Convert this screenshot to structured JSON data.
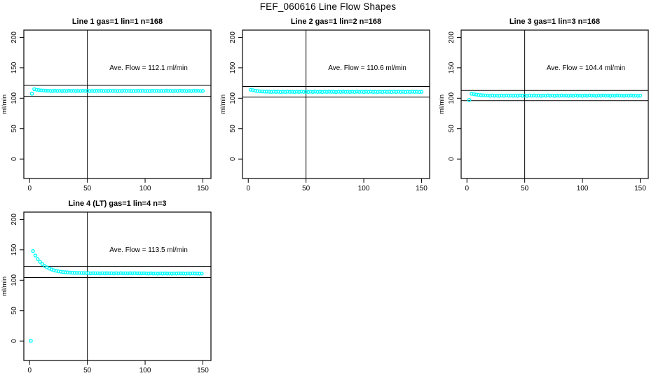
{
  "page_title": "FEF_060616  Line Flow Shapes",
  "colors": {
    "marker": "#00ffff",
    "axis": "#000000",
    "text": "#000000",
    "background": "#ffffff"
  },
  "chart_data": [
    {
      "type": "scatter",
      "title": "Line 1 gas=1 lin=1 n=168",
      "annotation": "Ave. Flow =  112.1  ml/min",
      "ave_flow_ml_min": 112.1,
      "n": 168,
      "ylabel": "ml/min",
      "xlim": [
        -5,
        157
      ],
      "ylim": [
        -32,
        212
      ],
      "xticks": [
        0,
        50,
        100,
        150
      ],
      "yticks": [
        0,
        50,
        100,
        150,
        200
      ],
      "vline_x": 50,
      "ref_lines": {
        "upper": 121.1,
        "lower": 103.1
      },
      "outlier_points": [
        [
          2,
          107.5
        ]
      ],
      "x_start": 4,
      "x_step": 2,
      "y": [
        114.8,
        114.0,
        113.4,
        112.9,
        112.6,
        112.4,
        112.2,
        112.1,
        111.8,
        112.3,
        111.9,
        112.2,
        111.8,
        112.1,
        111.8,
        112.3,
        111.9,
        112.2,
        111.8,
        112.1,
        111.8,
        112.3,
        111.9,
        112.2,
        111.8,
        112.1,
        111.8,
        112.3,
        111.9,
        112.2,
        111.8,
        112.1,
        111.8,
        112.3,
        111.9,
        112.2,
        111.8,
        112.1,
        111.8,
        112.3,
        111.9,
        112.2,
        111.8,
        112.1,
        111.8,
        112.3,
        111.9,
        112.2,
        111.8,
        112.1,
        111.8,
        112.3,
        111.9,
        112.2,
        111.8,
        112.1,
        111.8,
        112.3,
        111.9,
        112.2,
        111.8,
        112.1,
        111.8,
        112.3,
        111.9,
        112.2,
        111.8,
        112.1,
        111.8,
        112.3,
        111.9,
        112.2,
        111.8,
        112.0
      ]
    },
    {
      "type": "scatter",
      "title": "Line 2 gas=1 lin=2 n=168",
      "annotation": "Ave. Flow =  110.6  ml/min",
      "ave_flow_ml_min": 110.6,
      "n": 168,
      "ylabel": "ml/min",
      "xlim": [
        -5,
        157
      ],
      "ylim": [
        -32,
        212
      ],
      "xticks": [
        0,
        50,
        100,
        150
      ],
      "yticks": [
        0,
        50,
        100,
        150,
        200
      ],
      "vline_x": 50,
      "ref_lines": {
        "upper": 119.4,
        "lower": 101.8
      },
      "outlier_points": [],
      "x_start": 2,
      "x_step": 2,
      "y": [
        113.9,
        113.2,
        112.4,
        111.8,
        111.4,
        111.1,
        110.9,
        110.8,
        110.7,
        110.3,
        110.8,
        110.4,
        110.6,
        110.2,
        110.7,
        110.3,
        110.8,
        110.4,
        110.6,
        110.2,
        110.7,
        110.3,
        110.8,
        110.4,
        110.6,
        110.2,
        110.7,
        110.3,
        110.8,
        110.4,
        110.6,
        110.2,
        110.7,
        110.3,
        110.8,
        110.4,
        110.6,
        110.2,
        110.7,
        110.3,
        110.8,
        110.4,
        110.6,
        110.2,
        110.7,
        110.3,
        110.8,
        110.4,
        110.6,
        110.2,
        110.7,
        110.3,
        110.8,
        110.4,
        110.6,
        110.2,
        110.7,
        110.3,
        110.8,
        110.4,
        110.6,
        110.2,
        110.7,
        110.3,
        110.8,
        110.4,
        110.6,
        110.2,
        110.7,
        110.3,
        110.8,
        110.4,
        110.6,
        110.2,
        110.5
      ]
    },
    {
      "type": "scatter",
      "title": "Line 3 gas=1 lin=3 n=168",
      "annotation": "Ave. Flow =  104.4  ml/min",
      "ave_flow_ml_min": 104.4,
      "n": 168,
      "ylabel": "ml/min",
      "xlim": [
        -5,
        157
      ],
      "ylim": [
        -32,
        212
      ],
      "xticks": [
        0,
        50,
        100,
        150
      ],
      "yticks": [
        0,
        50,
        100,
        150,
        200
      ],
      "vline_x": 50,
      "ref_lines": {
        "upper": 112.8,
        "lower": 96.0
      },
      "outlier_points": [
        [
          2,
          97.0
        ]
      ],
      "x_start": 4,
      "x_step": 2,
      "y": [
        107.3,
        106.6,
        106.0,
        105.5,
        105.1,
        104.8,
        104.6,
        104.4,
        104.0,
        104.6,
        104.1,
        104.3,
        103.9,
        104.4,
        104.0,
        104.6,
        104.1,
        104.3,
        103.9,
        104.4,
        104.0,
        104.6,
        104.1,
        104.3,
        103.9,
        104.4,
        104.0,
        104.6,
        104.1,
        104.3,
        103.9,
        104.4,
        104.0,
        104.6,
        104.1,
        104.3,
        103.9,
        104.4,
        104.0,
        104.6,
        104.1,
        104.3,
        103.9,
        104.4,
        104.0,
        104.6,
        104.1,
        104.3,
        103.9,
        104.4,
        104.0,
        104.6,
        104.1,
        104.3,
        103.9,
        104.4,
        104.0,
        104.6,
        104.1,
        104.3,
        103.9,
        104.4,
        104.0,
        104.6,
        104.1,
        104.3,
        103.9,
        104.4,
        104.0,
        104.6,
        104.1,
        104.3,
        103.9,
        104.2
      ]
    },
    {
      "type": "scatter",
      "title": "Line 4 (LT) gas=1 lin=4 n=3",
      "annotation": "Ave. Flow =  113.5  ml/min",
      "ave_flow_ml_min": 113.5,
      "n": 3,
      "ylabel": "ml/min",
      "xlim": [
        -5,
        157
      ],
      "ylim": [
        -32,
        212
      ],
      "xticks": [
        0,
        50,
        100,
        150
      ],
      "yticks": [
        0,
        50,
        100,
        150,
        200
      ],
      "vline_x": 50,
      "ref_lines": {
        "upper": 122.6,
        "lower": 104.4
      },
      "outlier_points": [
        [
          1,
          0.5
        ]
      ],
      "x_start": 3,
      "x_step": 2,
      "y": [
        148.0,
        140.7,
        134.9,
        130.2,
        126.5,
        123.5,
        121.1,
        119.2,
        117.7,
        116.4,
        115.5,
        114.7,
        114.0,
        113.5,
        113.1,
        112.8,
        112.5,
        112.3,
        112.2,
        112.0,
        111.9,
        111.9,
        111.8,
        111.8,
        111.6,
        111.3,
        111.7,
        111.4,
        111.5,
        111.2,
        111.6,
        111.3,
        111.7,
        111.4,
        111.5,
        111.2,
        111.6,
        111.3,
        111.7,
        111.4,
        111.5,
        111.2,
        111.6,
        111.3,
        111.7,
        111.4,
        111.5,
        111.2,
        111.5,
        111.2,
        110.9,
        111.3,
        111.0,
        111.1,
        110.8,
        111.2,
        110.9,
        111.3,
        111.0,
        111.1,
        110.8,
        111.2,
        110.9,
        111.3,
        111.0,
        111.1,
        110.8,
        111.2,
        110.9,
        111.3,
        111.0,
        111.1,
        110.8,
        111.0
      ]
    }
  ]
}
